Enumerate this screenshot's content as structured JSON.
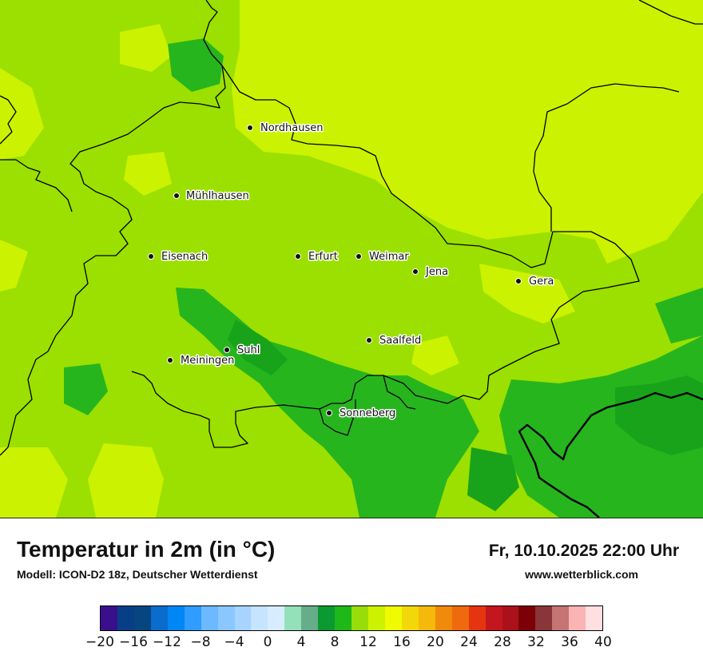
{
  "title": "Temperatur in 2m (in °C)",
  "subtitle": "Modell: ICON-D2 18z, Deutscher Wetterdienst",
  "datetime": "Fr, 10.10.2025 22:00 Uhr",
  "website": "www.wetterblick.com",
  "map": {
    "field_colors": {
      "t8_10": "#19a31a",
      "t10_12": "#27b51e",
      "t12_14": "#9be000",
      "t14_16": "#cbf200"
    },
    "border_color": "#000000",
    "cities": [
      {
        "id": "nordhausen",
        "name": "Nordhausen"
      },
      {
        "id": "muehlhausen",
        "name": "Mühlhausen"
      },
      {
        "id": "eisenach",
        "name": "Eisenach"
      },
      {
        "id": "erfurt",
        "name": "Erfurt"
      },
      {
        "id": "weimar",
        "name": "Weimar"
      },
      {
        "id": "jena",
        "name": "Jena"
      },
      {
        "id": "gera",
        "name": "Gera"
      },
      {
        "id": "saalfeld",
        "name": "Saalfeld"
      },
      {
        "id": "suhl",
        "name": "Suhl"
      },
      {
        "id": "meiningen",
        "name": "Meiningen"
      },
      {
        "id": "sonneberg",
        "name": "Sonneberg"
      }
    ]
  },
  "colorbar": {
    "colors": [
      "#3a0f8c",
      "#083e86",
      "#06457f",
      "#0a6ccd",
      "#0086f5",
      "#2f9cff",
      "#6cb9ff",
      "#8bc7ff",
      "#a6d4ff",
      "#c6e3ff",
      "#d8ecff",
      "#94e0b9",
      "#66ad8a",
      "#0b9a31",
      "#1fb819",
      "#97dd0a",
      "#cdf200",
      "#f0fa00",
      "#f2d80a",
      "#f4b90a",
      "#f08a0a",
      "#ef6a0c",
      "#e43510",
      "#c3161e",
      "#ab111a",
      "#7c0006",
      "#8a3538",
      "#c57373",
      "#fab4b4",
      "#ffdfe1"
    ],
    "ticks": [
      "−20",
      "−16",
      "−12",
      "−8",
      "−4",
      "0",
      "4",
      "8",
      "12",
      "16",
      "20",
      "24",
      "28",
      "32",
      "36",
      "40"
    ]
  }
}
